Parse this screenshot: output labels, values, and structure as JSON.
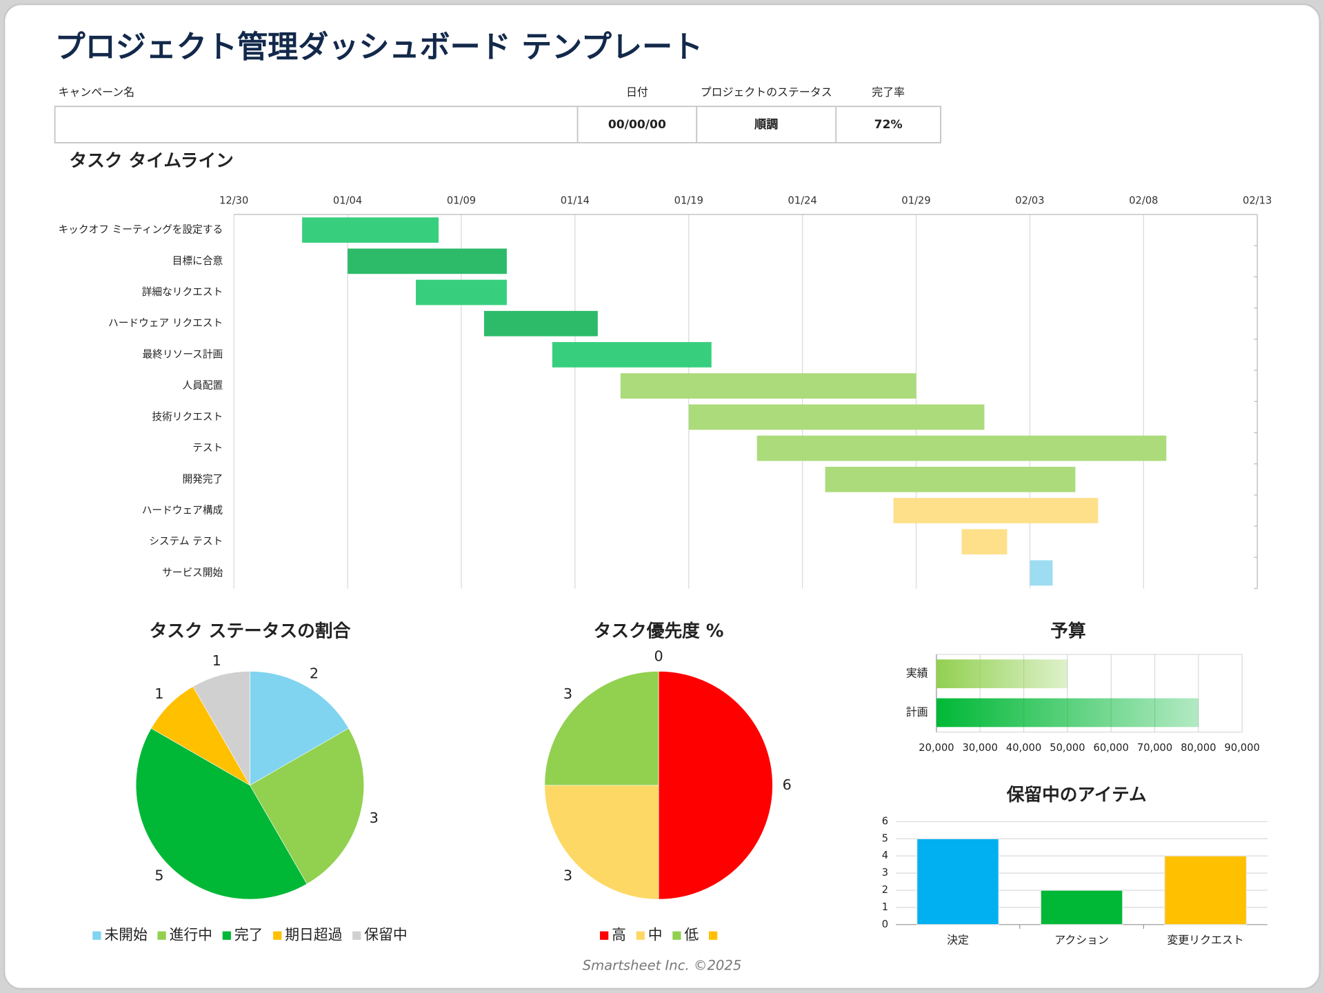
{
  "title": "プロジェクト管理ダッシュボード テンプレート",
  "header": {
    "fields": [
      {
        "label": "キャンペーン名"
      },
      {
        "label": "日付",
        "value": "00/00/00"
      },
      {
        "label": "プロジェクトのステータス",
        "value": "順調"
      },
      {
        "label": "完了率",
        "value": "72%"
      }
    ]
  },
  "chart_data": [
    {
      "type": "gantt",
      "title": "タスク タイムライン",
      "xlim": [
        "12/30",
        "02/13"
      ],
      "xticks": [
        "12/30",
        "01/04",
        "01/09",
        "01/14",
        "01/19",
        "01/24",
        "01/29",
        "02/03",
        "02/08",
        "02/13"
      ],
      "grid": true,
      "tasks": [
        {
          "name": "キックオフ ミーティングを設定する",
          "start": "01/02",
          "end": "01/08",
          "color": "#37cf7e"
        },
        {
          "name": "目標に合意",
          "start": "01/04",
          "end": "01/11",
          "color": "#2dbb6a"
        },
        {
          "name": "詳細なリクエスト",
          "start": "01/07",
          "end": "01/11",
          "color": "#37cf7e"
        },
        {
          "name": "ハードウェア リクエスト",
          "start": "01/10",
          "end": "01/15",
          "color": "#2dbb6a"
        },
        {
          "name": "最終リソース計画",
          "start": "01/13",
          "end": "01/20",
          "color": "#37cf7e"
        },
        {
          "name": "人員配置",
          "start": "01/16",
          "end": "01/29",
          "color": "#abdb7a"
        },
        {
          "name": "技術リクエスト",
          "start": "01/19",
          "end": "02/01",
          "color": "#abdb7a"
        },
        {
          "name": "テスト",
          "start": "01/22",
          "end": "02/09",
          "color": "#abdb7a"
        },
        {
          "name": "開発完了",
          "start": "01/25",
          "end": "02/05",
          "color": "#abdb7a"
        },
        {
          "name": "ハードウェア構成",
          "start": "01/28",
          "end": "02/06",
          "color": "#fee08b"
        },
        {
          "name": "システム テスト",
          "start": "01/31",
          "end": "02/02",
          "color": "#fee08b"
        },
        {
          "name": "サービス開始",
          "start": "02/03",
          "end": "02/04",
          "color": "#9edcf1"
        }
      ]
    },
    {
      "type": "pie",
      "title": "タスク ステータスの割合",
      "categories": [
        "未開始",
        "進行中",
        "完了",
        "期日超過",
        "保留中"
      ],
      "values": [
        2,
        3,
        5,
        1,
        1
      ],
      "colors": [
        "#80d4f0",
        "#92d050",
        "#00b836",
        "#ffc000",
        "#d0d0d0"
      ],
      "legend": "bottom"
    },
    {
      "type": "pie",
      "title": "タスク優先度 %",
      "categories": [
        "高",
        "中",
        "低",
        null
      ],
      "values": [
        6,
        3,
        3,
        0
      ],
      "colors": [
        "#ff0000",
        "#fdd865",
        "#92d050",
        "#ffc000"
      ],
      "legend": "bottom"
    },
    {
      "type": "bar",
      "orientation": "horizontal",
      "title": "予算",
      "categories": [
        "実績",
        "計画"
      ],
      "values": [
        50000,
        80000
      ],
      "colors": [
        "#92d050",
        "#00b836"
      ],
      "xlim": [
        20000,
        90000
      ],
      "xticks": [
        {
          "value": 20000,
          "label": "20,000"
        },
        {
          "value": 30000,
          "label": "30,000"
        },
        {
          "value": 40000,
          "label": "40,000"
        },
        {
          "value": 50000,
          "label": "50,000"
        },
        {
          "value": 60000,
          "label": "60,000"
        },
        {
          "value": 70000,
          "label": "70,000"
        },
        {
          "value": 80000,
          "label": "80,000"
        },
        {
          "value": 90000,
          "label": "90,000"
        }
      ],
      "grid": true
    },
    {
      "type": "bar",
      "orientation": "vertical",
      "title": "保留中のアイテム",
      "categories": [
        "決定",
        "アクション",
        "変更リクエスト"
      ],
      "values": [
        5,
        2,
        4
      ],
      "colors": [
        "#00b0f0",
        "#00b836",
        "#ffc000"
      ],
      "ylim": [
        0,
        6
      ],
      "yticks": [
        0,
        1,
        2,
        3,
        4,
        5,
        6
      ],
      "grid": true
    }
  ],
  "footer": "Smartsheet Inc. ©2025"
}
